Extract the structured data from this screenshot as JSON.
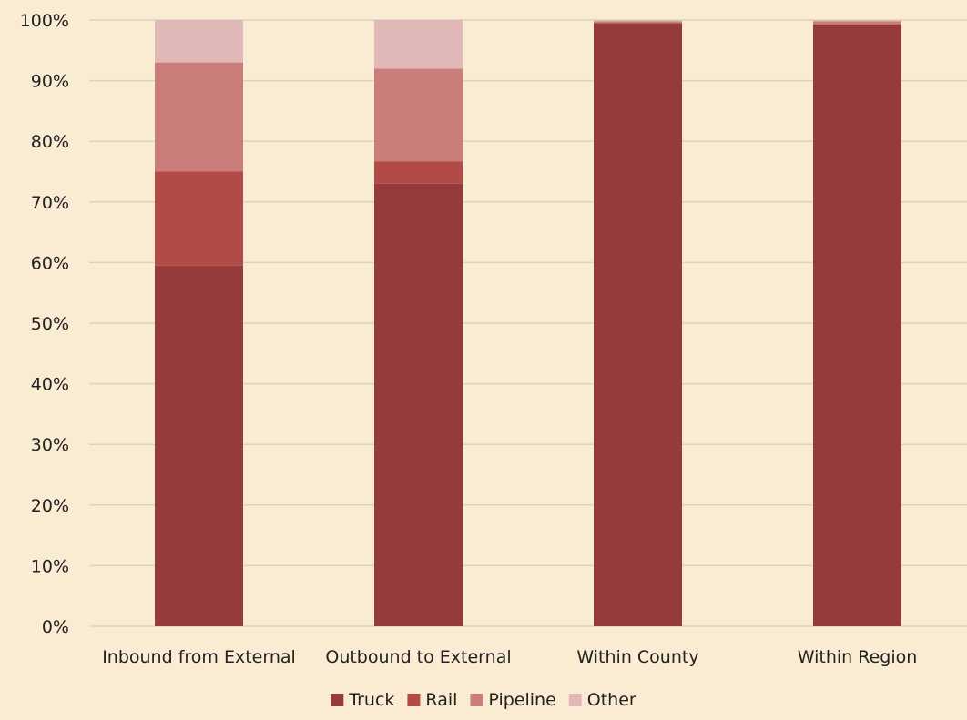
{
  "chart_data": {
    "type": "bar",
    "stacked": true,
    "percent": true,
    "categories": [
      "Inbound from External",
      "Outbound to External",
      "Within County",
      "Within Region"
    ],
    "series": [
      {
        "name": "Truck",
        "values": [
          59.5,
          73.0,
          99.5,
          99.3
        ],
        "color": "#963b3b"
      },
      {
        "name": "Rail",
        "values": [
          15.5,
          3.7,
          0.0,
          0.0
        ],
        "color": "#b24a48"
      },
      {
        "name": "Pipeline",
        "values": [
          18.0,
          15.3,
          0.3,
          0.5
        ],
        "color": "#ca7d7a"
      },
      {
        "name": "Other",
        "values": [
          7.0,
          8.0,
          0.2,
          0.2
        ],
        "color": "#e0b8b7"
      }
    ],
    "yticks": [
      "0%",
      "10%",
      "20%",
      "30%",
      "40%",
      "50%",
      "60%",
      "70%",
      "80%",
      "90%",
      "100%"
    ],
    "ylim": [
      0,
      100
    ],
    "grid": true,
    "legend": "bottom"
  }
}
